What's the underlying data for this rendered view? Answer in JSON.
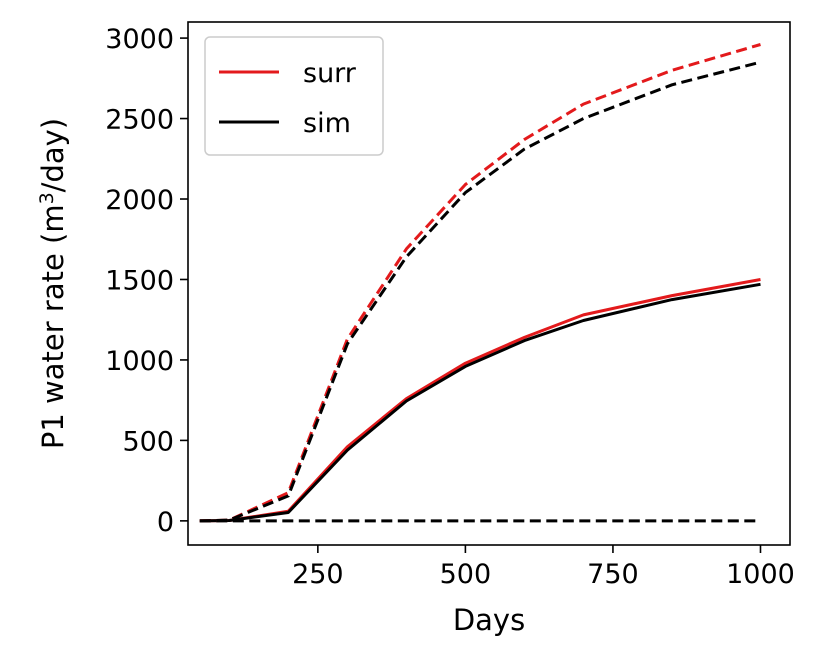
{
  "chart_data": {
    "type": "line",
    "title": "",
    "xlabel": "Days",
    "ylabel_parts": {
      "prefix": "P1 water rate (m",
      "sup": "3",
      "suffix": "/day)"
    },
    "xlim": [
      30,
      1050
    ],
    "ylim": [
      -150,
      3100
    ],
    "xticks": [
      250,
      500,
      750,
      1000
    ],
    "yticks": [
      0,
      500,
      1000,
      1500,
      2000,
      2500,
      3000
    ],
    "x": [
      50,
      100,
      200,
      300,
      400,
      500,
      600,
      700,
      850,
      1000
    ],
    "series": [
      {
        "name": "surr",
        "color": "#e31a1c",
        "style": "solid",
        "legend": true,
        "values": [
          0,
          2,
          60,
          460,
          760,
          980,
          1140,
          1280,
          1400,
          1500
        ]
      },
      {
        "name": "sim",
        "color": "#000000",
        "style": "solid",
        "legend": true,
        "values": [
          0,
          2,
          52,
          440,
          745,
          960,
          1120,
          1245,
          1375,
          1470
        ]
      },
      {
        "name": "surr-dashed",
        "color": "#e31a1c",
        "style": "dashed",
        "legend": false,
        "values": [
          0,
          5,
          175,
          1130,
          1690,
          2090,
          2370,
          2590,
          2800,
          2960
        ]
      },
      {
        "name": "sim-dashed",
        "color": "#000000",
        "style": "dashed",
        "legend": false,
        "values": [
          0,
          5,
          155,
          1100,
          1640,
          2040,
          2310,
          2500,
          2710,
          2850
        ]
      },
      {
        "name": "zero-dashed",
        "color": "#000000",
        "style": "dashed",
        "legend": false,
        "values": [
          0,
          0,
          0,
          0,
          0,
          0,
          0,
          0,
          0,
          0
        ]
      }
    ],
    "legend": {
      "position": "top-left",
      "entries": [
        "surr",
        "sim"
      ]
    },
    "grid": false
  }
}
